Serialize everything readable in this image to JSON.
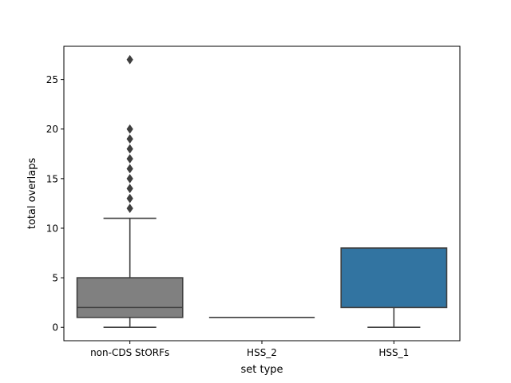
{
  "chart_data": {
    "type": "box",
    "xlabel": "set type",
    "ylabel": "total overlaps",
    "ylim": [
      -1.35,
      28.35
    ],
    "yticks": [
      0,
      5,
      10,
      15,
      20,
      25
    ],
    "categories": [
      "non-CDS StORFs",
      "HSS_2",
      "HSS_1"
    ],
    "boxes": [
      {
        "category": "non-CDS StORFs",
        "q1": 1,
        "median": 2,
        "q3": 5,
        "whisker_low": 0,
        "whisker_high": 11,
        "outliers": [
          12,
          13,
          14,
          15,
          16,
          17,
          18,
          19,
          20,
          27
        ],
        "color": "#808080"
      },
      {
        "category": "HSS_2",
        "q1": 1,
        "median": 1,
        "q3": 1,
        "whisker_low": 1,
        "whisker_high": 1,
        "outliers": [],
        "color": "#808080"
      },
      {
        "category": "HSS_1",
        "q1": 2,
        "median": 8,
        "q3": 8,
        "whisker_low": 0,
        "whisker_high": 8,
        "outliers": [],
        "color": "#3274a1"
      }
    ],
    "line_color": "#3f3f3f",
    "grid": false
  }
}
